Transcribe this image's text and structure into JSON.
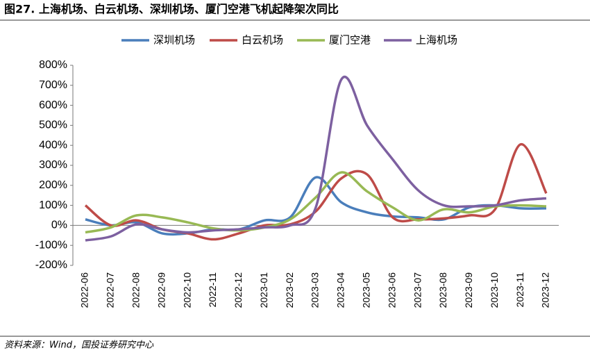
{
  "chart_data": {
    "type": "line",
    "title": "图27. 上海机场、白云机场、深圳机场、厦门空港飞机起降架次同比",
    "source": "资料来源：Wind，国投证券研究中心",
    "categories": [
      "2022-06",
      "2022-07",
      "2022-08",
      "2022-09",
      "2022-10",
      "2022-11",
      "2022-12",
      "2023-01",
      "2023-02",
      "2023-03",
      "2023-04",
      "2023-05",
      "2023-06",
      "2023-07",
      "2023-08",
      "2023-09",
      "2023-10",
      "2023-11",
      "2023-12"
    ],
    "series": [
      {
        "name": "深圳机场",
        "color": "#4a7ebb",
        "values": [
          30,
          0,
          15,
          -40,
          -40,
          -20,
          -20,
          25,
          40,
          240,
          115,
          65,
          45,
          40,
          30,
          90,
          100,
          85,
          85
        ]
      },
      {
        "name": "白云机场",
        "color": "#be4b48",
        "values": [
          100,
          0,
          25,
          -20,
          -40,
          -70,
          -40,
          0,
          5,
          70,
          235,
          255,
          40,
          30,
          35,
          50,
          80,
          405,
          160
        ]
      },
      {
        "name": "厦门空港",
        "color": "#98b954",
        "values": [
          -35,
          -10,
          50,
          40,
          15,
          -15,
          -25,
          -10,
          30,
          140,
          265,
          170,
          90,
          25,
          80,
          65,
          95,
          100,
          95
        ]
      },
      {
        "name": "上海机场",
        "color": "#7d60a0",
        "values": [
          -75,
          -55,
          5,
          -20,
          -35,
          -25,
          -20,
          -10,
          0,
          90,
          730,
          500,
          330,
          175,
          100,
          95,
          100,
          125,
          135
        ]
      }
    ],
    "ylim": [
      -200,
      800
    ],
    "yticks": [
      {
        "value": -200,
        "label": "-200%"
      },
      {
        "value": -100,
        "label": "-100%"
      },
      {
        "value": 0,
        "label": "0%"
      },
      {
        "value": 100,
        "label": "100%"
      },
      {
        "value": 200,
        "label": "200%"
      },
      {
        "value": 300,
        "label": "300%"
      },
      {
        "value": 400,
        "label": "400%"
      },
      {
        "value": 500,
        "label": "500%"
      },
      {
        "value": 600,
        "label": "600%"
      },
      {
        "value": 700,
        "label": "700%"
      },
      {
        "value": 800,
        "label": "800%"
      }
    ],
    "grid": false,
    "legend": "top"
  }
}
